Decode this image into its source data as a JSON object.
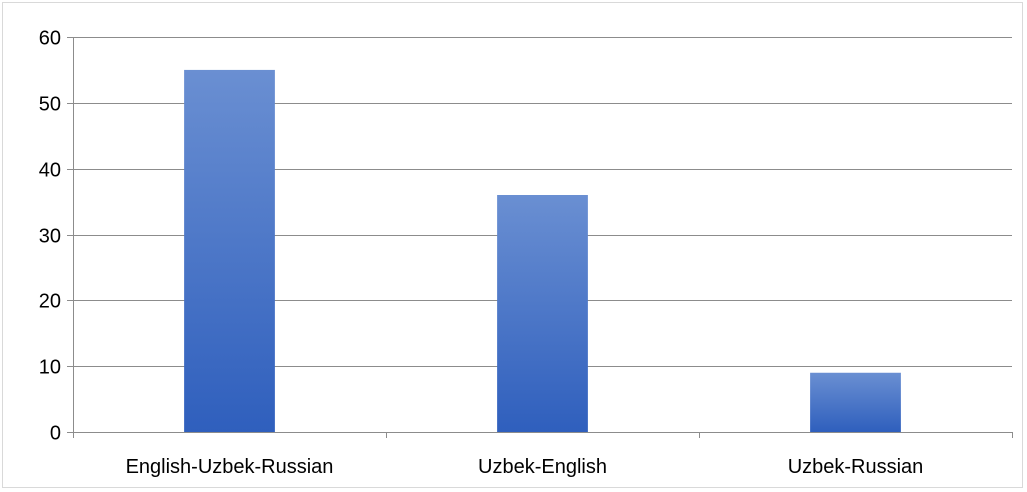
{
  "chart_data": {
    "type": "bar",
    "categories": [
      "English-Uzbek-Russian",
      "Uzbek-English",
      "Uzbek-Russian"
    ],
    "values": [
      55,
      36,
      9
    ],
    "ylim": [
      0,
      60
    ],
    "yticks": [
      0,
      10,
      20,
      30,
      40,
      50,
      60
    ],
    "grid": true,
    "legend": "none",
    "colors": {
      "bar_top": "#6a8fd2",
      "bar_bottom": "#2f5fbd",
      "gridline": "#8c8c8c"
    }
  }
}
